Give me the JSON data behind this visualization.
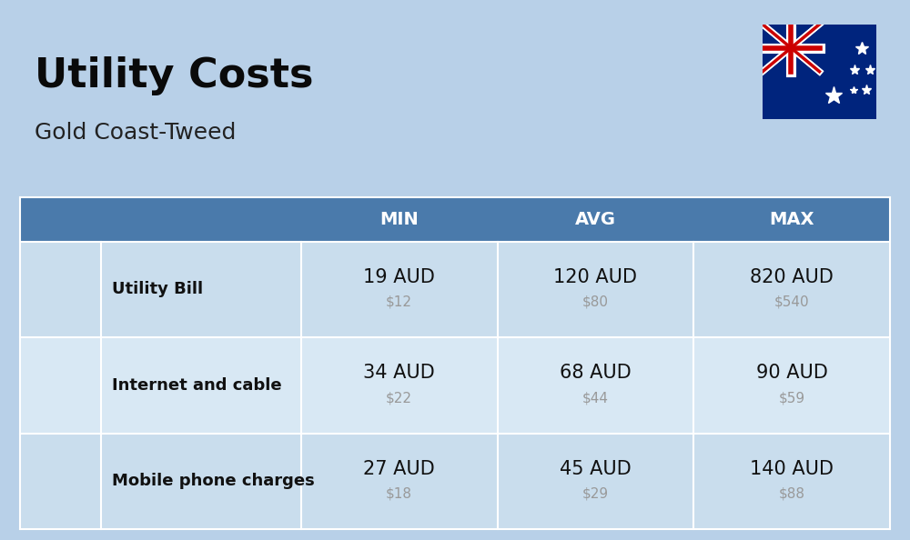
{
  "title": "Utility Costs",
  "subtitle": "Gold Coast-Tweed",
  "background_color": "#b8d0e8",
  "header_color": "#4a7aab",
  "header_text_color": "#ffffff",
  "row_color_odd": "#c9dded",
  "row_color_even": "#d8e8f4",
  "col_headers": [
    "MIN",
    "AVG",
    "MAX"
  ],
  "rows": [
    {
      "label": "Utility Bill",
      "min_aud": "19 AUD",
      "min_usd": "$12",
      "avg_aud": "120 AUD",
      "avg_usd": "$80",
      "max_aud": "820 AUD",
      "max_usd": "$540"
    },
    {
      "label": "Internet and cable",
      "min_aud": "34 AUD",
      "min_usd": "$22",
      "avg_aud": "68 AUD",
      "avg_usd": "$44",
      "max_aud": "90 AUD",
      "max_usd": "$59"
    },
    {
      "label": "Mobile phone charges",
      "min_aud": "27 AUD",
      "min_usd": "$18",
      "avg_aud": "45 AUD",
      "avg_usd": "$29",
      "max_aud": "140 AUD",
      "max_usd": "$88"
    }
  ],
  "title_fontsize": 32,
  "subtitle_fontsize": 18,
  "header_fontsize": 14,
  "label_fontsize": 13,
  "aud_fontsize": 15,
  "usd_fontsize": 11,
  "usd_color": "#999999",
  "label_color": "#111111",
  "aud_color": "#111111"
}
